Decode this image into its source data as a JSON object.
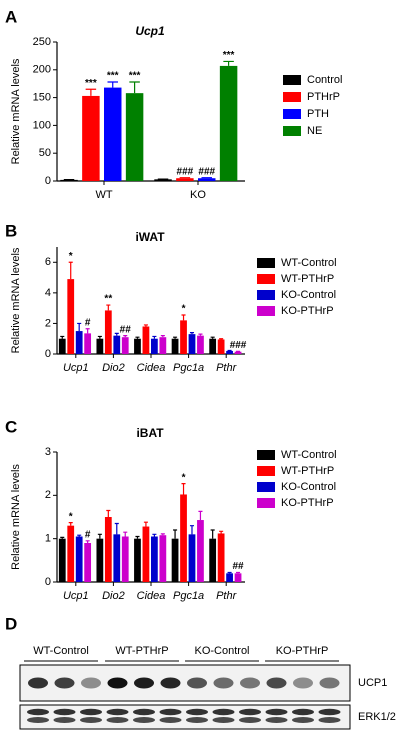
{
  "chart_data": [
    {
      "type": "bar",
      "label": "A",
      "title": "Ucp1",
      "ylabel": "Relative mRNA levels",
      "categories": [
        "WT",
        "KO"
      ],
      "series": [
        {
          "name": "Control",
          "color": "#000000",
          "values": [
            2,
            3
          ],
          "errors": [
            0.5,
            0.5
          ],
          "significance": [
            null,
            null
          ]
        },
        {
          "name": "PTHrP",
          "color": "#ff0000",
          "values": [
            153,
            5
          ],
          "errors": [
            12,
            1
          ],
          "significance": [
            "***",
            "###"
          ]
        },
        {
          "name": "PTH",
          "color": "#0000ff",
          "values": [
            168,
            5
          ],
          "errors": [
            10,
            1
          ],
          "significance": [
            "***",
            "###"
          ]
        },
        {
          "name": "NE",
          "color": "#008000",
          "values": [
            158,
            207
          ],
          "errors": [
            20,
            8
          ],
          "significance": [
            "***",
            "***"
          ]
        }
      ],
      "ylim": [
        0,
        250
      ],
      "yticks": [
        0,
        50,
        100,
        150,
        200,
        250
      ],
      "grid": false
    },
    {
      "type": "bar",
      "label": "B",
      "title": "iWAT",
      "ylabel": "Relative mRNA levels",
      "categories": [
        "Ucp1",
        "Dio2",
        "Cidea",
        "Pgc1a",
        "Pthr"
      ],
      "series": [
        {
          "name": "WT-Control",
          "color": "#000000",
          "values": [
            1.0,
            1.0,
            1.0,
            1.0,
            1.0
          ],
          "errors": [
            0.15,
            0.15,
            0.1,
            0.1,
            0.1
          ],
          "significance": [
            null,
            null,
            null,
            null,
            null
          ]
        },
        {
          "name": "WT-PTHrP",
          "color": "#ff0000",
          "values": [
            4.9,
            2.85,
            1.8,
            2.2,
            0.95
          ],
          "errors": [
            1.1,
            0.35,
            0.1,
            0.35,
            0.05
          ],
          "significance": [
            "*",
            "**",
            null,
            "*",
            null
          ]
        },
        {
          "name": "KO-Control",
          "color": "#0000cc",
          "values": [
            1.5,
            1.2,
            1.0,
            1.3,
            0.2
          ],
          "errors": [
            0.5,
            0.15,
            0.15,
            0.1,
            0.03
          ],
          "significance": [
            null,
            null,
            null,
            null,
            null
          ]
        },
        {
          "name": "KO-PTHrP",
          "color": "#cc00cc",
          "values": [
            1.35,
            1.1,
            1.1,
            1.2,
            0.15
          ],
          "errors": [
            0.3,
            0.1,
            0.1,
            0.1,
            0.02
          ],
          "significance": [
            "#",
            "##",
            null,
            null,
            "###"
          ]
        }
      ],
      "ylim": [
        0,
        7
      ],
      "yticks": [
        0,
        2,
        4,
        6
      ],
      "grid": false
    },
    {
      "type": "bar",
      "label": "C",
      "title": "iBAT",
      "ylabel": "Relative mRNA levels",
      "categories": [
        "Ucp1",
        "Dio2",
        "Cidea",
        "Pgc1a",
        "Pthr"
      ],
      "series": [
        {
          "name": "WT-Control",
          "color": "#000000",
          "values": [
            1.0,
            1.0,
            1.0,
            1.0,
            1.0
          ],
          "errors": [
            0.03,
            0.1,
            0.05,
            0.2,
            0.2
          ],
          "significance": [
            null,
            null,
            null,
            null,
            null
          ]
        },
        {
          "name": "WT-PTHrP",
          "color": "#ff0000",
          "values": [
            1.3,
            1.5,
            1.28,
            2.02,
            1.12
          ],
          "errors": [
            0.07,
            0.15,
            0.1,
            0.25,
            0.05
          ],
          "significance": [
            "*",
            null,
            null,
            "*",
            null
          ]
        },
        {
          "name": "KO-Control",
          "color": "#0000cc",
          "values": [
            1.05,
            1.1,
            1.05,
            1.1,
            0.2
          ],
          "errors": [
            0.03,
            0.25,
            0.05,
            0.2,
            0.02
          ],
          "significance": [
            null,
            null,
            null,
            null,
            null
          ]
        },
        {
          "name": "KO-PTHrP",
          "color": "#cc00cc",
          "values": [
            0.9,
            1.05,
            1.08,
            1.43,
            0.2
          ],
          "errors": [
            0.05,
            0.1,
            0.03,
            0.2,
            0.02
          ],
          "significance": [
            "#",
            null,
            null,
            null,
            "##"
          ]
        }
      ],
      "ylim": [
        0,
        3
      ],
      "yticks": [
        0,
        1,
        2,
        3
      ],
      "grid": false
    }
  ],
  "blot": {
    "label": "D",
    "groups": [
      "WT-Control",
      "WT-PTHrP",
      "KO-Control",
      "KO-PTHrP"
    ],
    "rows": [
      "UCP1",
      "ERK1/2"
    ]
  }
}
